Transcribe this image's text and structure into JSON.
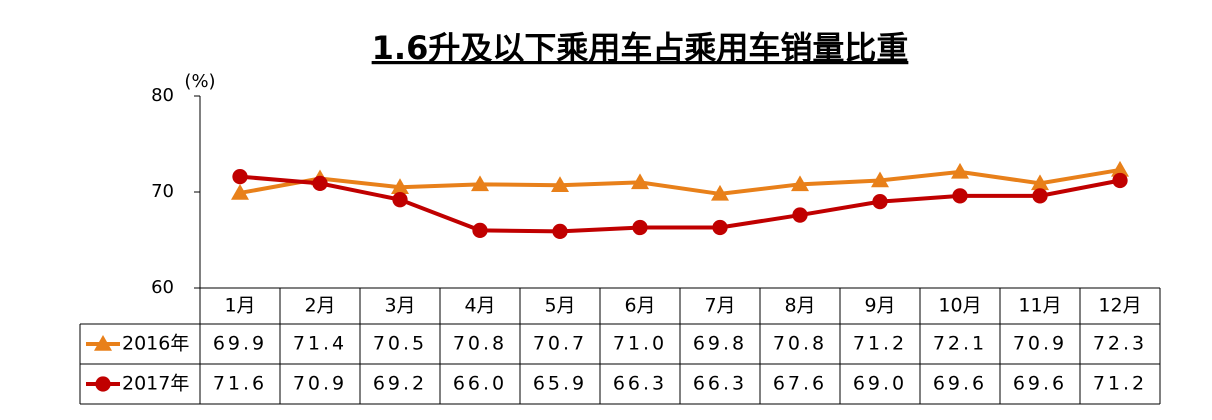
{
  "chart_data": {
    "type": "line",
    "title": "1.6升及以下乘用车占乘用车销量比重",
    "ylabel": "(%)",
    "categories": [
      "1月",
      "2月",
      "3月",
      "4月",
      "5月",
      "6月",
      "7月",
      "8月",
      "9月",
      "10月",
      "11月",
      "12月"
    ],
    "ylim": [
      60,
      80
    ],
    "yticks": [
      60,
      70,
      80
    ],
    "grid": false,
    "series": [
      {
        "name": "2016年",
        "color": "#e8801a",
        "marker": "triangle",
        "values": [
          69.9,
          71.4,
          70.5,
          70.8,
          70.7,
          71.0,
          69.8,
          70.8,
          71.2,
          72.1,
          70.9,
          72.3
        ],
        "value_labels": [
          "69.9",
          "71.4",
          "70.5",
          "70.8",
          "70.7",
          "71.0",
          "69.8",
          "70.8",
          "71.2",
          "72.1",
          "70.9",
          "72.3"
        ]
      },
      {
        "name": "2017年",
        "color": "#c00000",
        "marker": "circle",
        "values": [
          71.6,
          70.9,
          69.2,
          66.0,
          65.9,
          66.3,
          66.3,
          67.6,
          69.0,
          69.6,
          69.6,
          71.2
        ],
        "value_labels": [
          "71.6",
          "70.9",
          "69.2",
          "66.0",
          "65.9",
          "66.3",
          "66.3",
          "67.6",
          "69.0",
          "69.6",
          "69.6",
          "71.2"
        ]
      }
    ]
  }
}
